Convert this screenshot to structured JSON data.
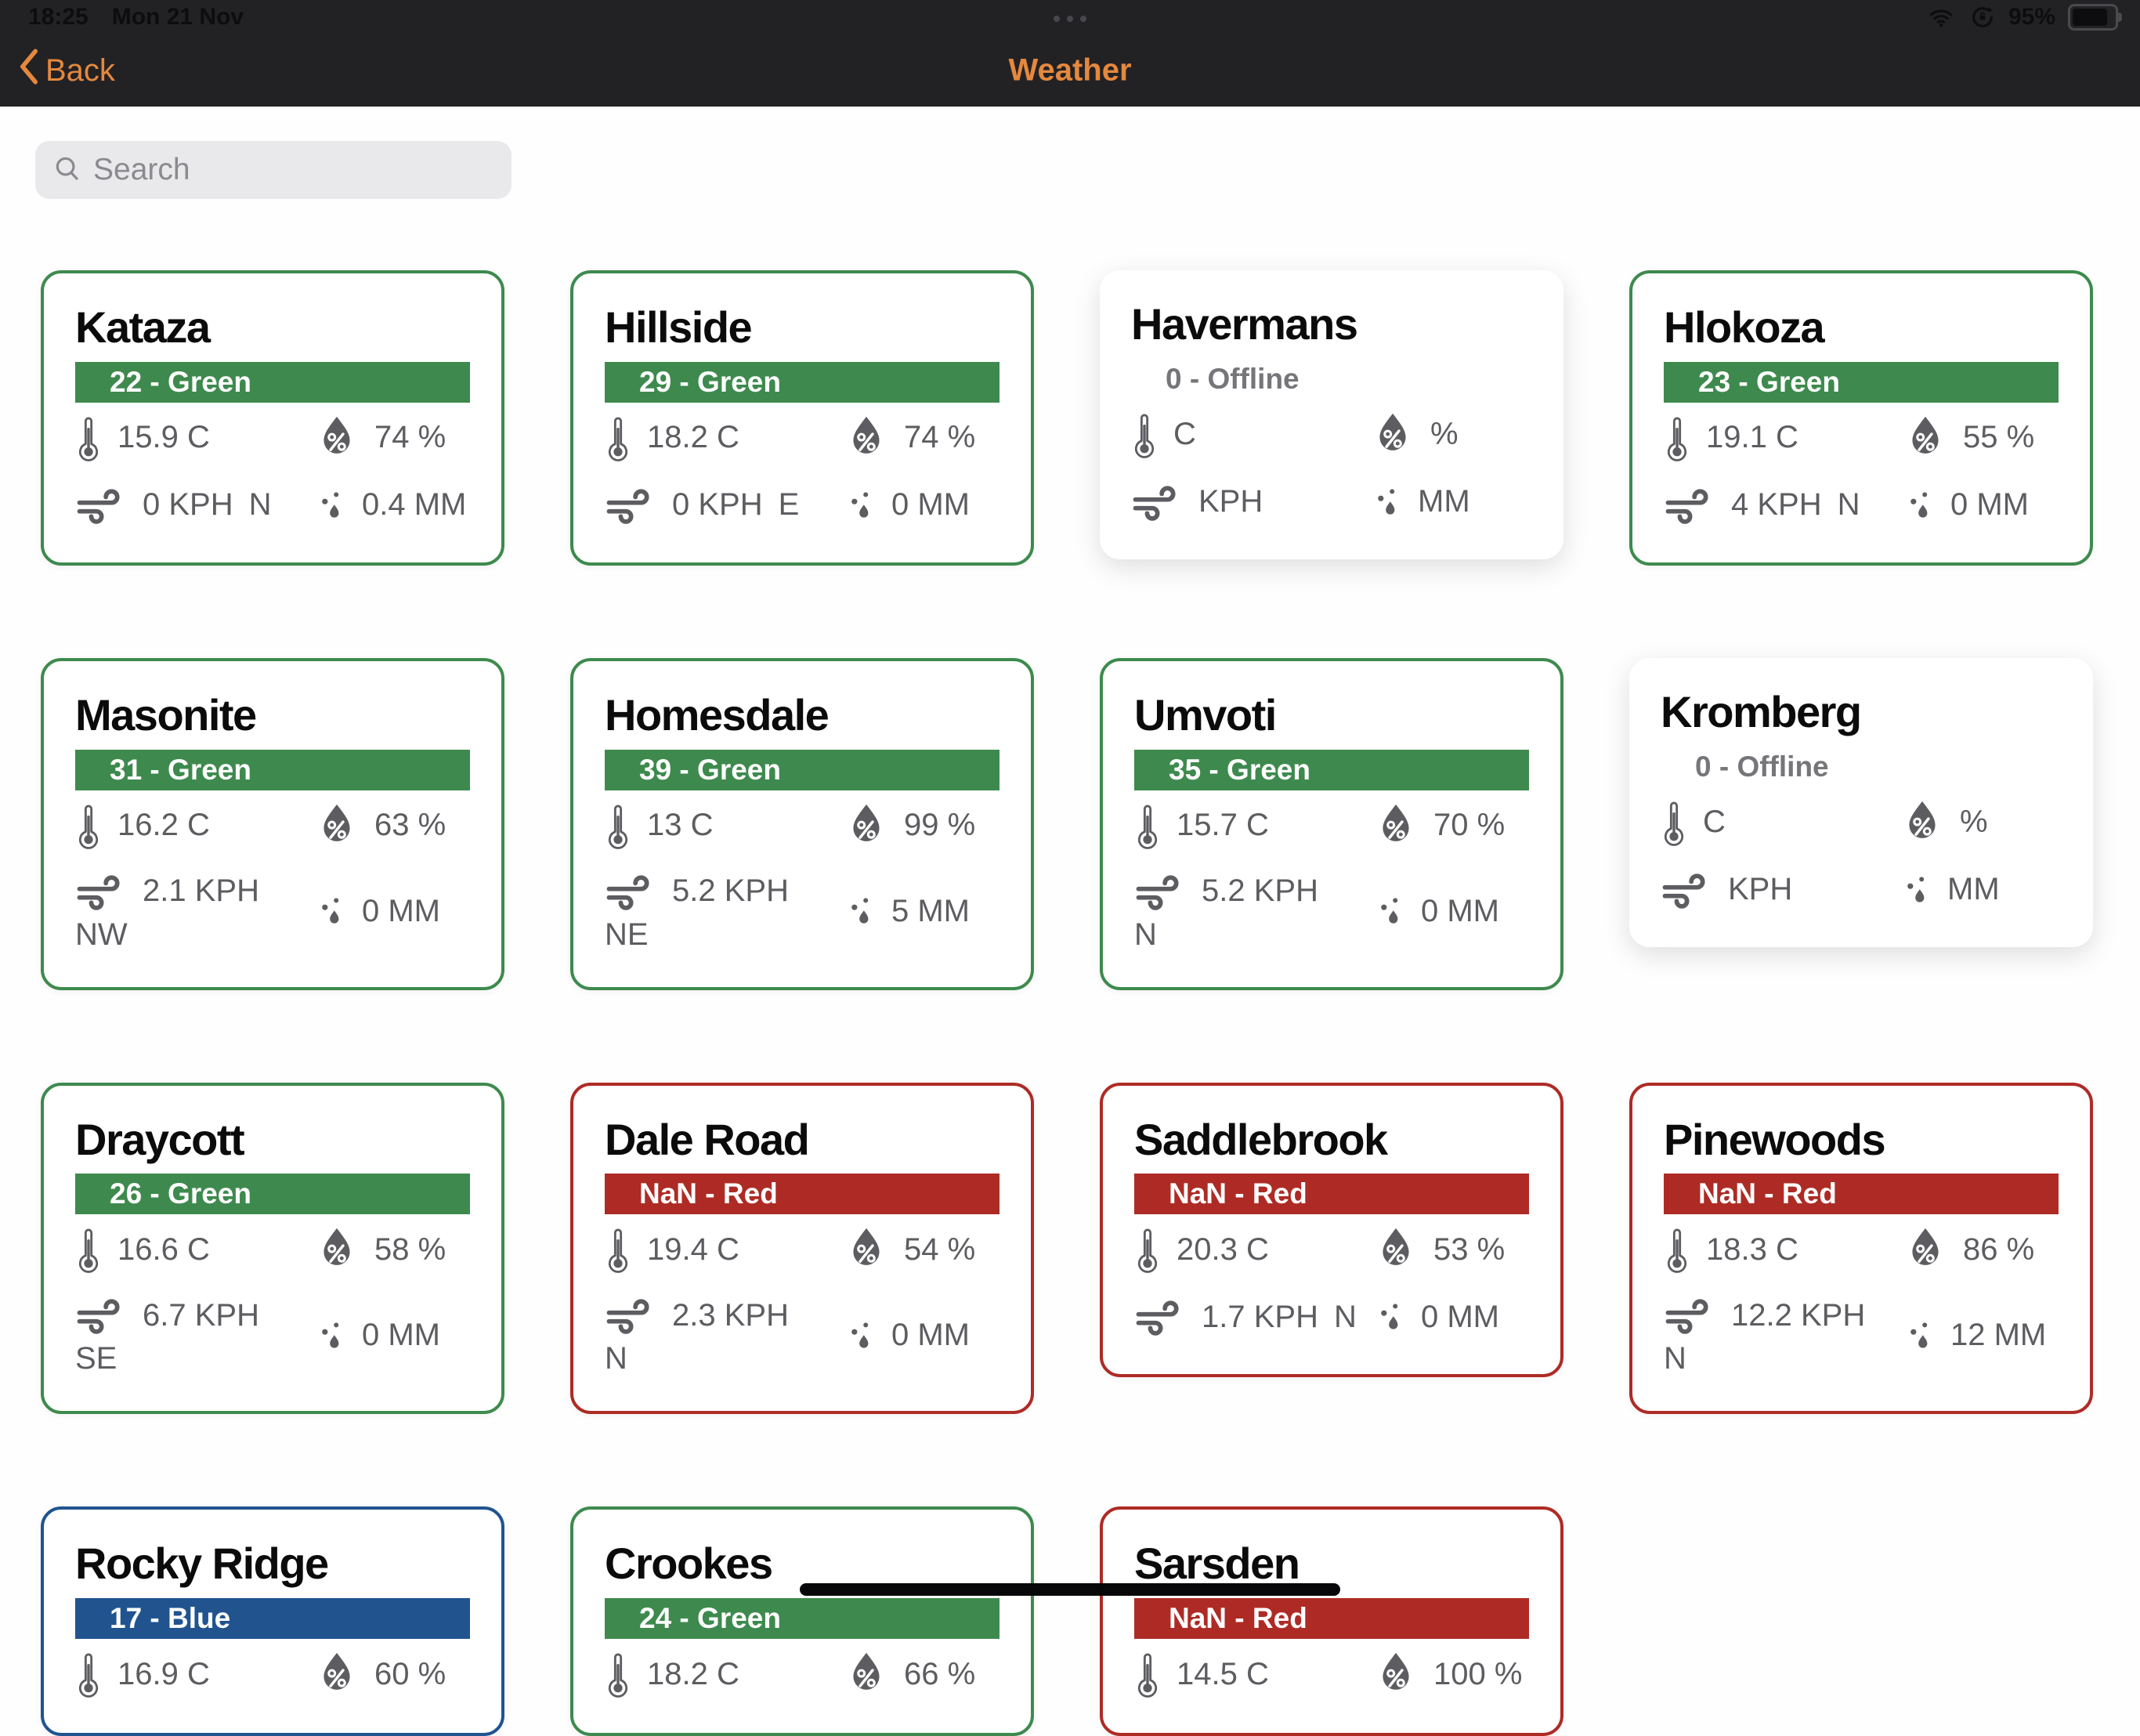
{
  "status_bar": {
    "time": "18:25",
    "date": "Mon 21 Nov",
    "battery_percent": "95%",
    "icons": [
      "wifi-icon",
      "rotation-lock-icon",
      "battery-icon"
    ]
  },
  "nav": {
    "back_label": "Back",
    "title": "Weather"
  },
  "search": {
    "placeholder": "Search"
  },
  "colors": {
    "green": "#3e8a4e",
    "red": "#ae2b25",
    "blue": "#21548f",
    "offline": "#76767a",
    "accent_orange": "#e5883d"
  },
  "cards": [
    {
      "name": "Kataza",
      "status_label": "22 - Green",
      "status_type": "green",
      "temp": "15.9 C",
      "humidity": "74 %",
      "wind": "0 KPH",
      "wind_dir": "N",
      "wind_dir_new_line": false,
      "precip": "0.4 MM"
    },
    {
      "name": "Hillside",
      "status_label": "29 - Green",
      "status_type": "green",
      "temp": "18.2 C",
      "humidity": "74 %",
      "wind": "0 KPH",
      "wind_dir": "E",
      "wind_dir_new_line": false,
      "precip": "0 MM"
    },
    {
      "name": "Havermans",
      "status_label": "0 - Offline",
      "status_type": "offline",
      "temp": "C",
      "humidity": "%",
      "wind": "KPH",
      "wind_dir": "",
      "wind_dir_new_line": false,
      "precip": "MM"
    },
    {
      "name": "Hlokoza",
      "status_label": "23 - Green",
      "status_type": "green",
      "temp": "19.1 C",
      "humidity": "55 %",
      "wind": "4 KPH",
      "wind_dir": "N",
      "wind_dir_new_line": false,
      "precip": "0 MM"
    },
    {
      "name": "Masonite",
      "status_label": "31 - Green",
      "status_type": "green",
      "temp": "16.2 C",
      "humidity": "63 %",
      "wind": "2.1 KPH",
      "wind_dir": "NW",
      "wind_dir_new_line": true,
      "precip": "0 MM"
    },
    {
      "name": "Homesdale",
      "status_label": "39 - Green",
      "status_type": "green",
      "temp": "13 C",
      "humidity": "99 %",
      "wind": "5.2 KPH",
      "wind_dir": "NE",
      "wind_dir_new_line": true,
      "precip": "5 MM"
    },
    {
      "name": "Umvoti",
      "status_label": "35 - Green",
      "status_type": "green",
      "temp": "15.7 C",
      "humidity": "70 %",
      "wind": "5.2 KPH",
      "wind_dir": "N",
      "wind_dir_new_line": true,
      "precip": "0 MM"
    },
    {
      "name": "Kromberg",
      "status_label": "0 - Offline",
      "status_type": "offline",
      "temp": "C",
      "humidity": "%",
      "wind": "KPH",
      "wind_dir": "",
      "wind_dir_new_line": false,
      "precip": "MM"
    },
    {
      "name": "Draycott",
      "status_label": "26 - Green",
      "status_type": "green",
      "temp": "16.6 C",
      "humidity": "58 %",
      "wind": "6.7 KPH",
      "wind_dir": "SE",
      "wind_dir_new_line": true,
      "precip": "0 MM"
    },
    {
      "name": "Dale Road",
      "status_label": "NaN - Red",
      "status_type": "red",
      "temp": "19.4 C",
      "humidity": "54 %",
      "wind": "2.3 KPH",
      "wind_dir": "N",
      "wind_dir_new_line": true,
      "precip": "0 MM"
    },
    {
      "name": "Saddlebrook",
      "status_label": "NaN - Red",
      "status_type": "red",
      "temp": "20.3 C",
      "humidity": "53 %",
      "wind": "1.7 KPH",
      "wind_dir": "N",
      "wind_dir_new_line": false,
      "precip": "0 MM"
    },
    {
      "name": "Pinewoods",
      "status_label": "NaN - Red",
      "status_type": "red",
      "temp": "18.3 C",
      "humidity": "86 %",
      "wind": "12.2 KPH",
      "wind_dir": "N",
      "wind_dir_new_line": true,
      "precip": "12 MM"
    },
    {
      "name": "Rocky Ridge",
      "status_label": "17 - Blue",
      "status_type": "blue",
      "temp": "16.9 C",
      "humidity": "60 %",
      "wind": null,
      "wind_dir": null,
      "wind_dir_new_line": false,
      "precip": null
    },
    {
      "name": "Crookes",
      "status_label": "24 - Green",
      "status_type": "green",
      "temp": "18.2 C",
      "humidity": "66 %",
      "wind": null,
      "wind_dir": null,
      "wind_dir_new_line": false,
      "precip": null
    },
    {
      "name": "Sarsden",
      "status_label": "NaN - Red",
      "status_type": "red",
      "temp": "14.5 C",
      "humidity": "100 %",
      "wind": null,
      "wind_dir": null,
      "wind_dir_new_line": false,
      "precip": null
    }
  ]
}
